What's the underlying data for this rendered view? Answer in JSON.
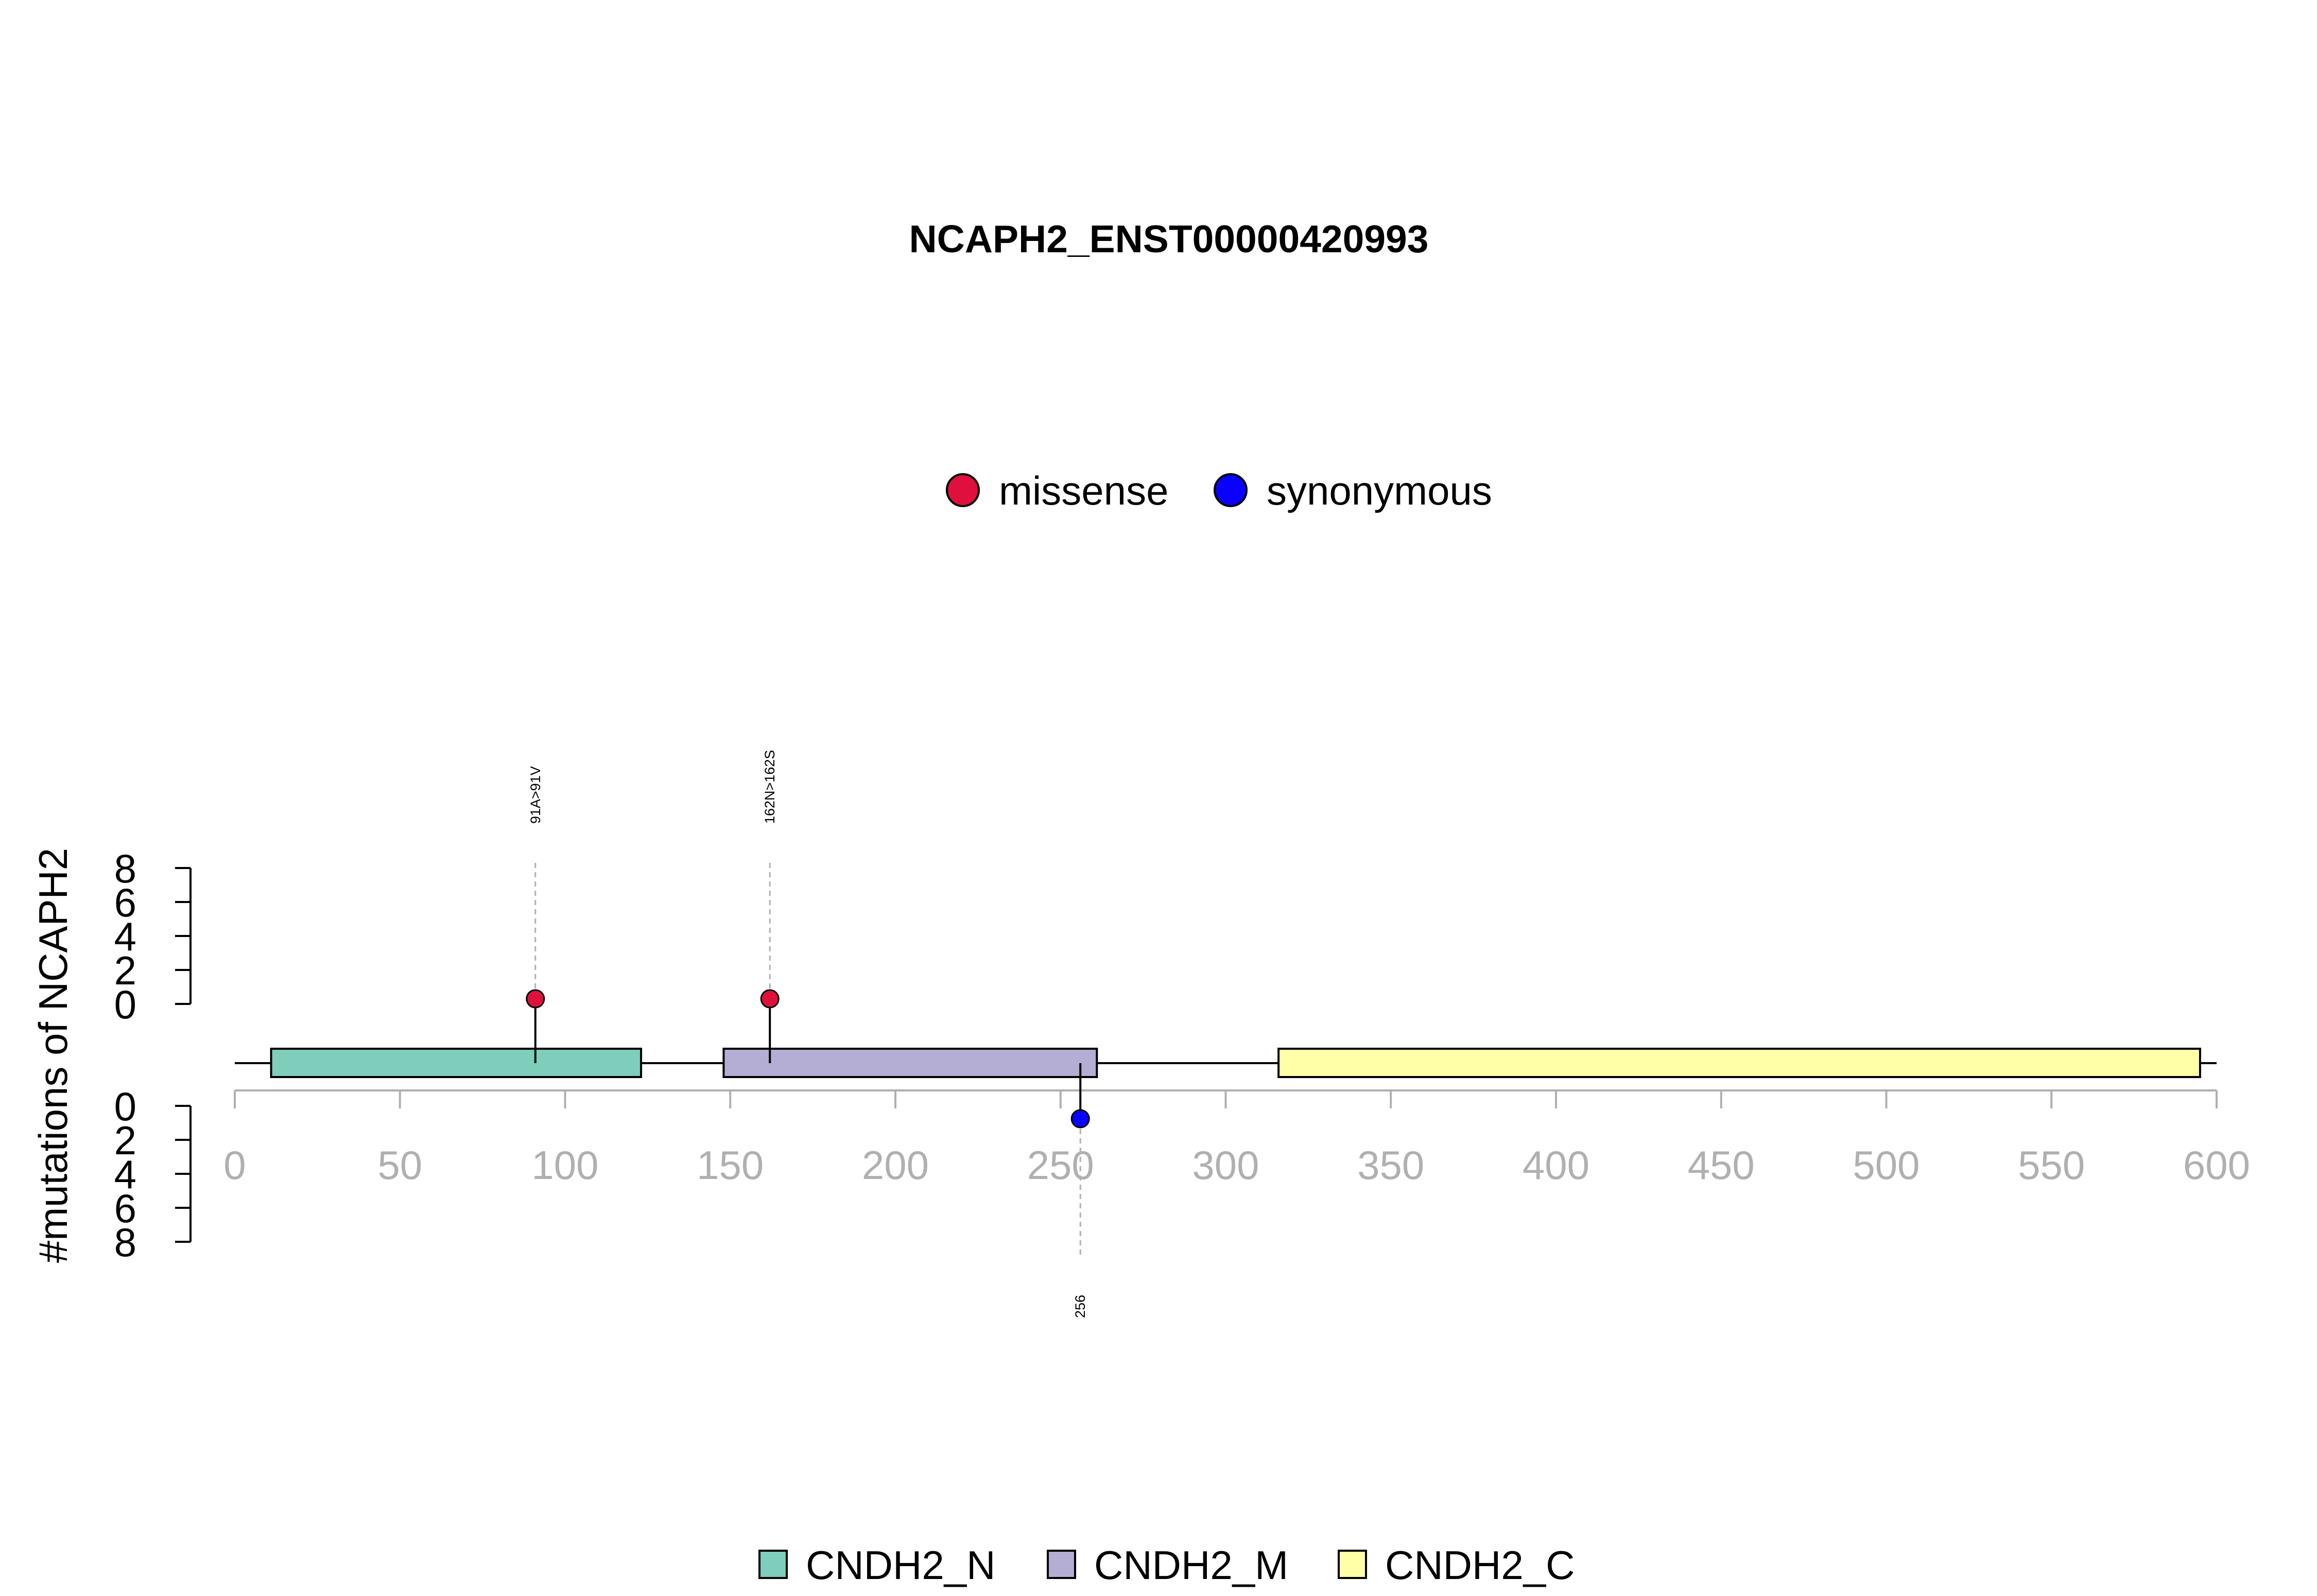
{
  "chart_data": {
    "type": "lollipop",
    "title": "NCAPH2_ENST00000420993",
    "ylabel": "#mutations of NCAPH2",
    "xlim": [
      0,
      600
    ],
    "xticks": [
      0,
      50,
      100,
      150,
      200,
      250,
      300,
      350,
      400,
      450,
      500,
      550,
      600
    ],
    "yticks_top": [
      0,
      2,
      4,
      6,
      8
    ],
    "yticks_bottom": [
      0,
      2,
      4,
      6,
      8
    ],
    "mutation_legend": [
      {
        "label": "missense",
        "color": "#e0103c"
      },
      {
        "label": "synonymous",
        "color": "#0a00ff"
      }
    ],
    "mutations": [
      {
        "position": 91,
        "label": "91A>91V",
        "type": "missense",
        "count": 1,
        "side": "top",
        "color": "#e0103c"
      },
      {
        "position": 162,
        "label": "162N>162S",
        "type": "missense",
        "count": 1,
        "side": "top",
        "color": "#e0103c"
      },
      {
        "position": 256,
        "label": "256",
        "type": "synonymous",
        "count": 1,
        "side": "bottom",
        "color": "#0a00ff"
      }
    ],
    "domains": [
      {
        "name": "CNDH2_N",
        "start": 11,
        "end": 123,
        "color": "#7fcdbb"
      },
      {
        "name": "CNDH2_M",
        "start": 148,
        "end": 261,
        "color": "#b4add4"
      },
      {
        "name": "CNDH2_C",
        "start": 316,
        "end": 595,
        "color": "#ffffa8"
      }
    ]
  }
}
